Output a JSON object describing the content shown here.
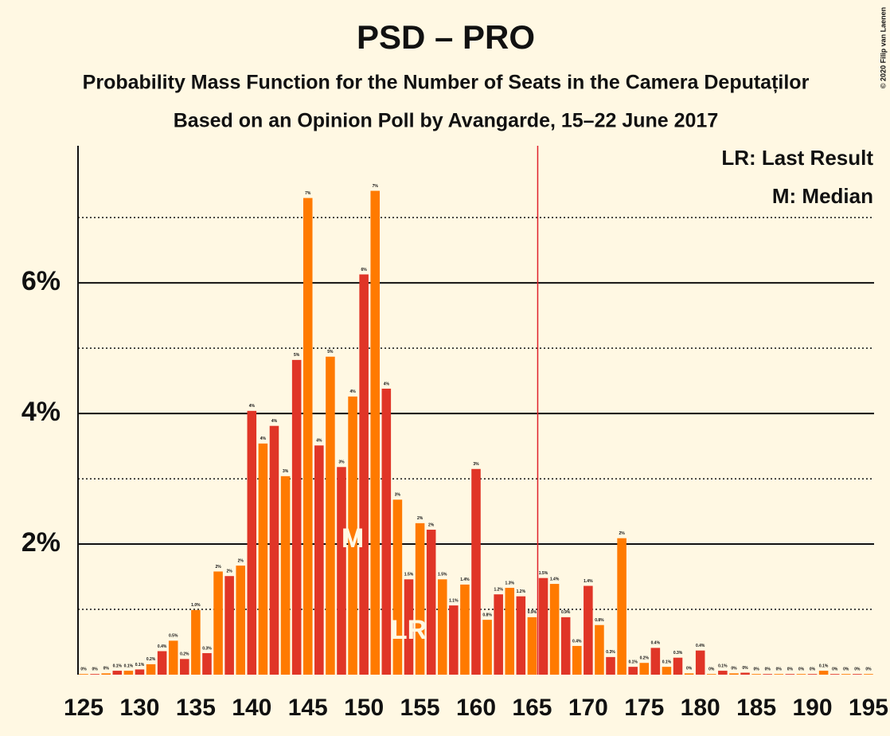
{
  "chart_data": {
    "type": "bar",
    "title": "PSD – PRO",
    "subtitle": "Probability Mass Function for the Number of Seats in the Camera Deputaților",
    "subtitle2": "Based on an Opinion Poll by Avangarde, 15–22 June 2017",
    "copyright": "© 2020 Filip van Laenen",
    "legend": [
      "LR: Last Result",
      "M: Median"
    ],
    "x": [
      125,
      126,
      127,
      128,
      129,
      130,
      131,
      132,
      133,
      134,
      135,
      136,
      137,
      138,
      139,
      140,
      141,
      142,
      143,
      144,
      145,
      146,
      147,
      148,
      149,
      150,
      151,
      152,
      153,
      154,
      155,
      156,
      157,
      158,
      159,
      160,
      161,
      162,
      163,
      164,
      165,
      166,
      167,
      168,
      169,
      170,
      171,
      172,
      173,
      174,
      175,
      176,
      177,
      178,
      179,
      180,
      181,
      182,
      183,
      184,
      185,
      186,
      187,
      188,
      189,
      190,
      191,
      192,
      193,
      194,
      195
    ],
    "values": [
      0.01,
      0.01,
      0.02,
      0.06,
      0.06,
      0.08,
      0.16,
      0.36,
      0.52,
      0.24,
      0.99,
      0.33,
      1.58,
      1.51,
      1.67,
      4.04,
      3.54,
      3.81,
      3.04,
      4.82,
      7.3,
      3.51,
      4.87,
      3.18,
      4.26,
      6.13,
      7.41,
      4.38,
      2.68,
      1.46,
      2.32,
      2.22,
      1.46,
      1.06,
      1.38,
      3.15,
      0.84,
      1.23,
      1.33,
      1.2,
      0.88,
      1.48,
      1.39,
      0.88,
      0.44,
      1.36,
      0.76,
      0.27,
      2.09,
      0.12,
      0.18,
      0.41,
      0.12,
      0.26,
      0.02,
      0.37,
      0.01,
      0.06,
      0.02,
      0.03,
      0.01,
      0.01,
      0.01,
      0.01,
      0.01,
      0.01,
      0.06,
      0.01,
      0.01,
      0.01,
      0.01
    ],
    "value_labels": [
      "0%",
      "0%",
      "0%",
      "0.1%",
      "0.1%",
      "0.1%",
      "0.2%",
      "0.4%",
      "0.5%",
      "0.2%",
      "1.0%",
      "0.3%",
      "2%",
      "2%",
      "2%",
      "4%",
      "4%",
      "4%",
      "3%",
      "5%",
      "7%",
      "4%",
      "5%",
      "3%",
      "4%",
      "6%",
      "7%",
      "4%",
      "3%",
      "1.5%",
      "2%",
      "2%",
      "1.5%",
      "1.1%",
      "1.4%",
      "3%",
      "0.8%",
      "1.2%",
      "1.3%",
      "1.2%",
      "0.9%",
      "1.5%",
      "1.4%",
      "0.9%",
      "0.4%",
      "1.4%",
      "0.8%",
      "0.3%",
      "2%",
      "0.1%",
      "0.2%",
      "0.4%",
      "0.1%",
      "0.3%",
      "0%",
      "0.4%",
      "0%",
      "0.1%",
      "0%",
      "0%",
      "0%",
      "0%",
      "0%",
      "0%",
      "0%",
      "0%",
      "0.1%",
      "0%",
      "0%",
      "0%",
      "0%"
    ],
    "colors": [
      "#ff7a00",
      "#e03527"
    ],
    "xlim": [
      124.5,
      195.5
    ],
    "xticks": [
      125,
      130,
      135,
      140,
      145,
      150,
      155,
      160,
      165,
      170,
      175,
      180,
      185,
      190,
      195
    ],
    "ylim": [
      0,
      8.1
    ],
    "yticks": [
      {
        "value": 2,
        "label": "2%"
      },
      {
        "value": 4,
        "label": "4%"
      },
      {
        "value": 6,
        "label": "6%"
      }
    ],
    "dotted_gridlines": [
      1,
      3,
      5,
      7
    ],
    "threshold_line": 166,
    "annotations": [
      {
        "text": "M",
        "x": 149
      },
      {
        "text": "LR",
        "x": 154
      }
    ]
  }
}
